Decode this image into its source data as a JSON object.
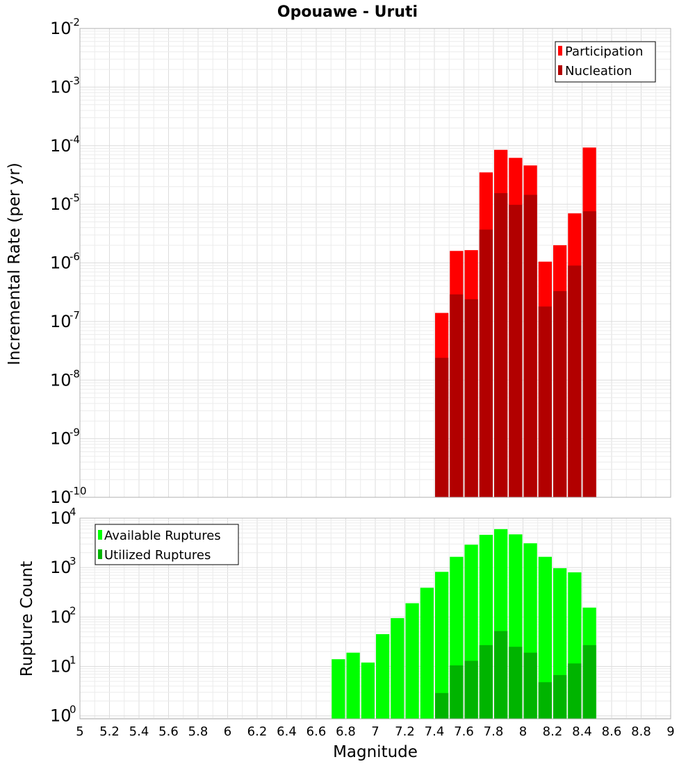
{
  "colors": {
    "participation": "#ff0000",
    "nucleation": "#b20000",
    "available": "#00ff00",
    "utilized": "#00b400",
    "grid_minor": "#ececec",
    "grid_major": "#dcdcdc",
    "frame": "#b0b0b0"
  },
  "chart_data": [
    {
      "id": "rate",
      "type": "bar",
      "title": "Opouawe - Uruti",
      "xlabel": "",
      "ylabel": "Incremental Rate (per yr)",
      "yscale": "log",
      "ylim_exp": [
        -10,
        -2
      ],
      "xlim": [
        5,
        9
      ],
      "y_tick_exponents": [
        "-10",
        "-9",
        "-8",
        "-7",
        "-6",
        "-5",
        "-4",
        "-3",
        "-2"
      ],
      "legend": {
        "position": "top-right",
        "entries": [
          "Participation",
          "Nucleation"
        ]
      },
      "x": [
        7.45,
        7.55,
        7.65,
        7.75,
        7.85,
        7.95,
        8.05,
        8.15,
        8.25,
        8.35,
        8.45
      ],
      "series": [
        {
          "name": "Participation",
          "color": "#ff0000",
          "values": [
            1.4e-07,
            1.6e-06,
            1.65e-06,
            3.5e-05,
            8.5e-05,
            6.2e-05,
            4.6e-05,
            1.05e-06,
            2e-06,
            7e-06,
            9.3e-05
          ]
        },
        {
          "name": "Nucleation",
          "color": "#b20000",
          "values": [
            2.4e-08,
            2.9e-07,
            2.4e-07,
            3.7e-06,
            1.55e-05,
            9.8e-06,
            1.45e-05,
            1.8e-07,
            3.3e-07,
            9e-07,
            7.6e-06
          ]
        }
      ]
    },
    {
      "id": "count",
      "type": "bar",
      "xlabel": "Magnitude",
      "ylabel": "Rupture Count",
      "yscale": "log",
      "ylim_exp": [
        -0.06,
        4
      ],
      "xlim": [
        5,
        9
      ],
      "y_tick_exponents": [
        "0",
        "1",
        "2",
        "3",
        "4"
      ],
      "x_tick_labels": [
        "5",
        "5.2",
        "5.4",
        "5.6",
        "5.8",
        "6",
        "6.2",
        "6.4",
        "6.6",
        "6.8",
        "7",
        "7.2",
        "7.4",
        "7.6",
        "7.8",
        "8",
        "8.2",
        "8.4",
        "8.6",
        "8.8",
        "9"
      ],
      "legend": {
        "position": "top-left",
        "entries": [
          "Available Ruptures",
          "Utilized Ruptures"
        ]
      },
      "x": [
        6.75,
        6.85,
        6.95,
        7.05,
        7.15,
        7.25,
        7.35,
        7.45,
        7.55,
        7.65,
        7.75,
        7.85,
        7.95,
        8.05,
        8.15,
        8.25,
        8.35,
        8.45
      ],
      "series": [
        {
          "name": "Available Ruptures",
          "color": "#00ff00",
          "values": [
            14,
            19,
            12,
            45,
            95,
            190,
            390,
            820,
            1650,
            2900,
            4600,
            6000,
            4700,
            3100,
            1650,
            970,
            800,
            155
          ]
        },
        {
          "name": "Utilized Ruptures",
          "color": "#00b400",
          "values": [
            0,
            0,
            0,
            0,
            0,
            0,
            0,
            2.9,
            10.5,
            13,
            27,
            52,
            25,
            19,
            4.8,
            6.7,
            11.5,
            27
          ]
        }
      ]
    }
  ]
}
